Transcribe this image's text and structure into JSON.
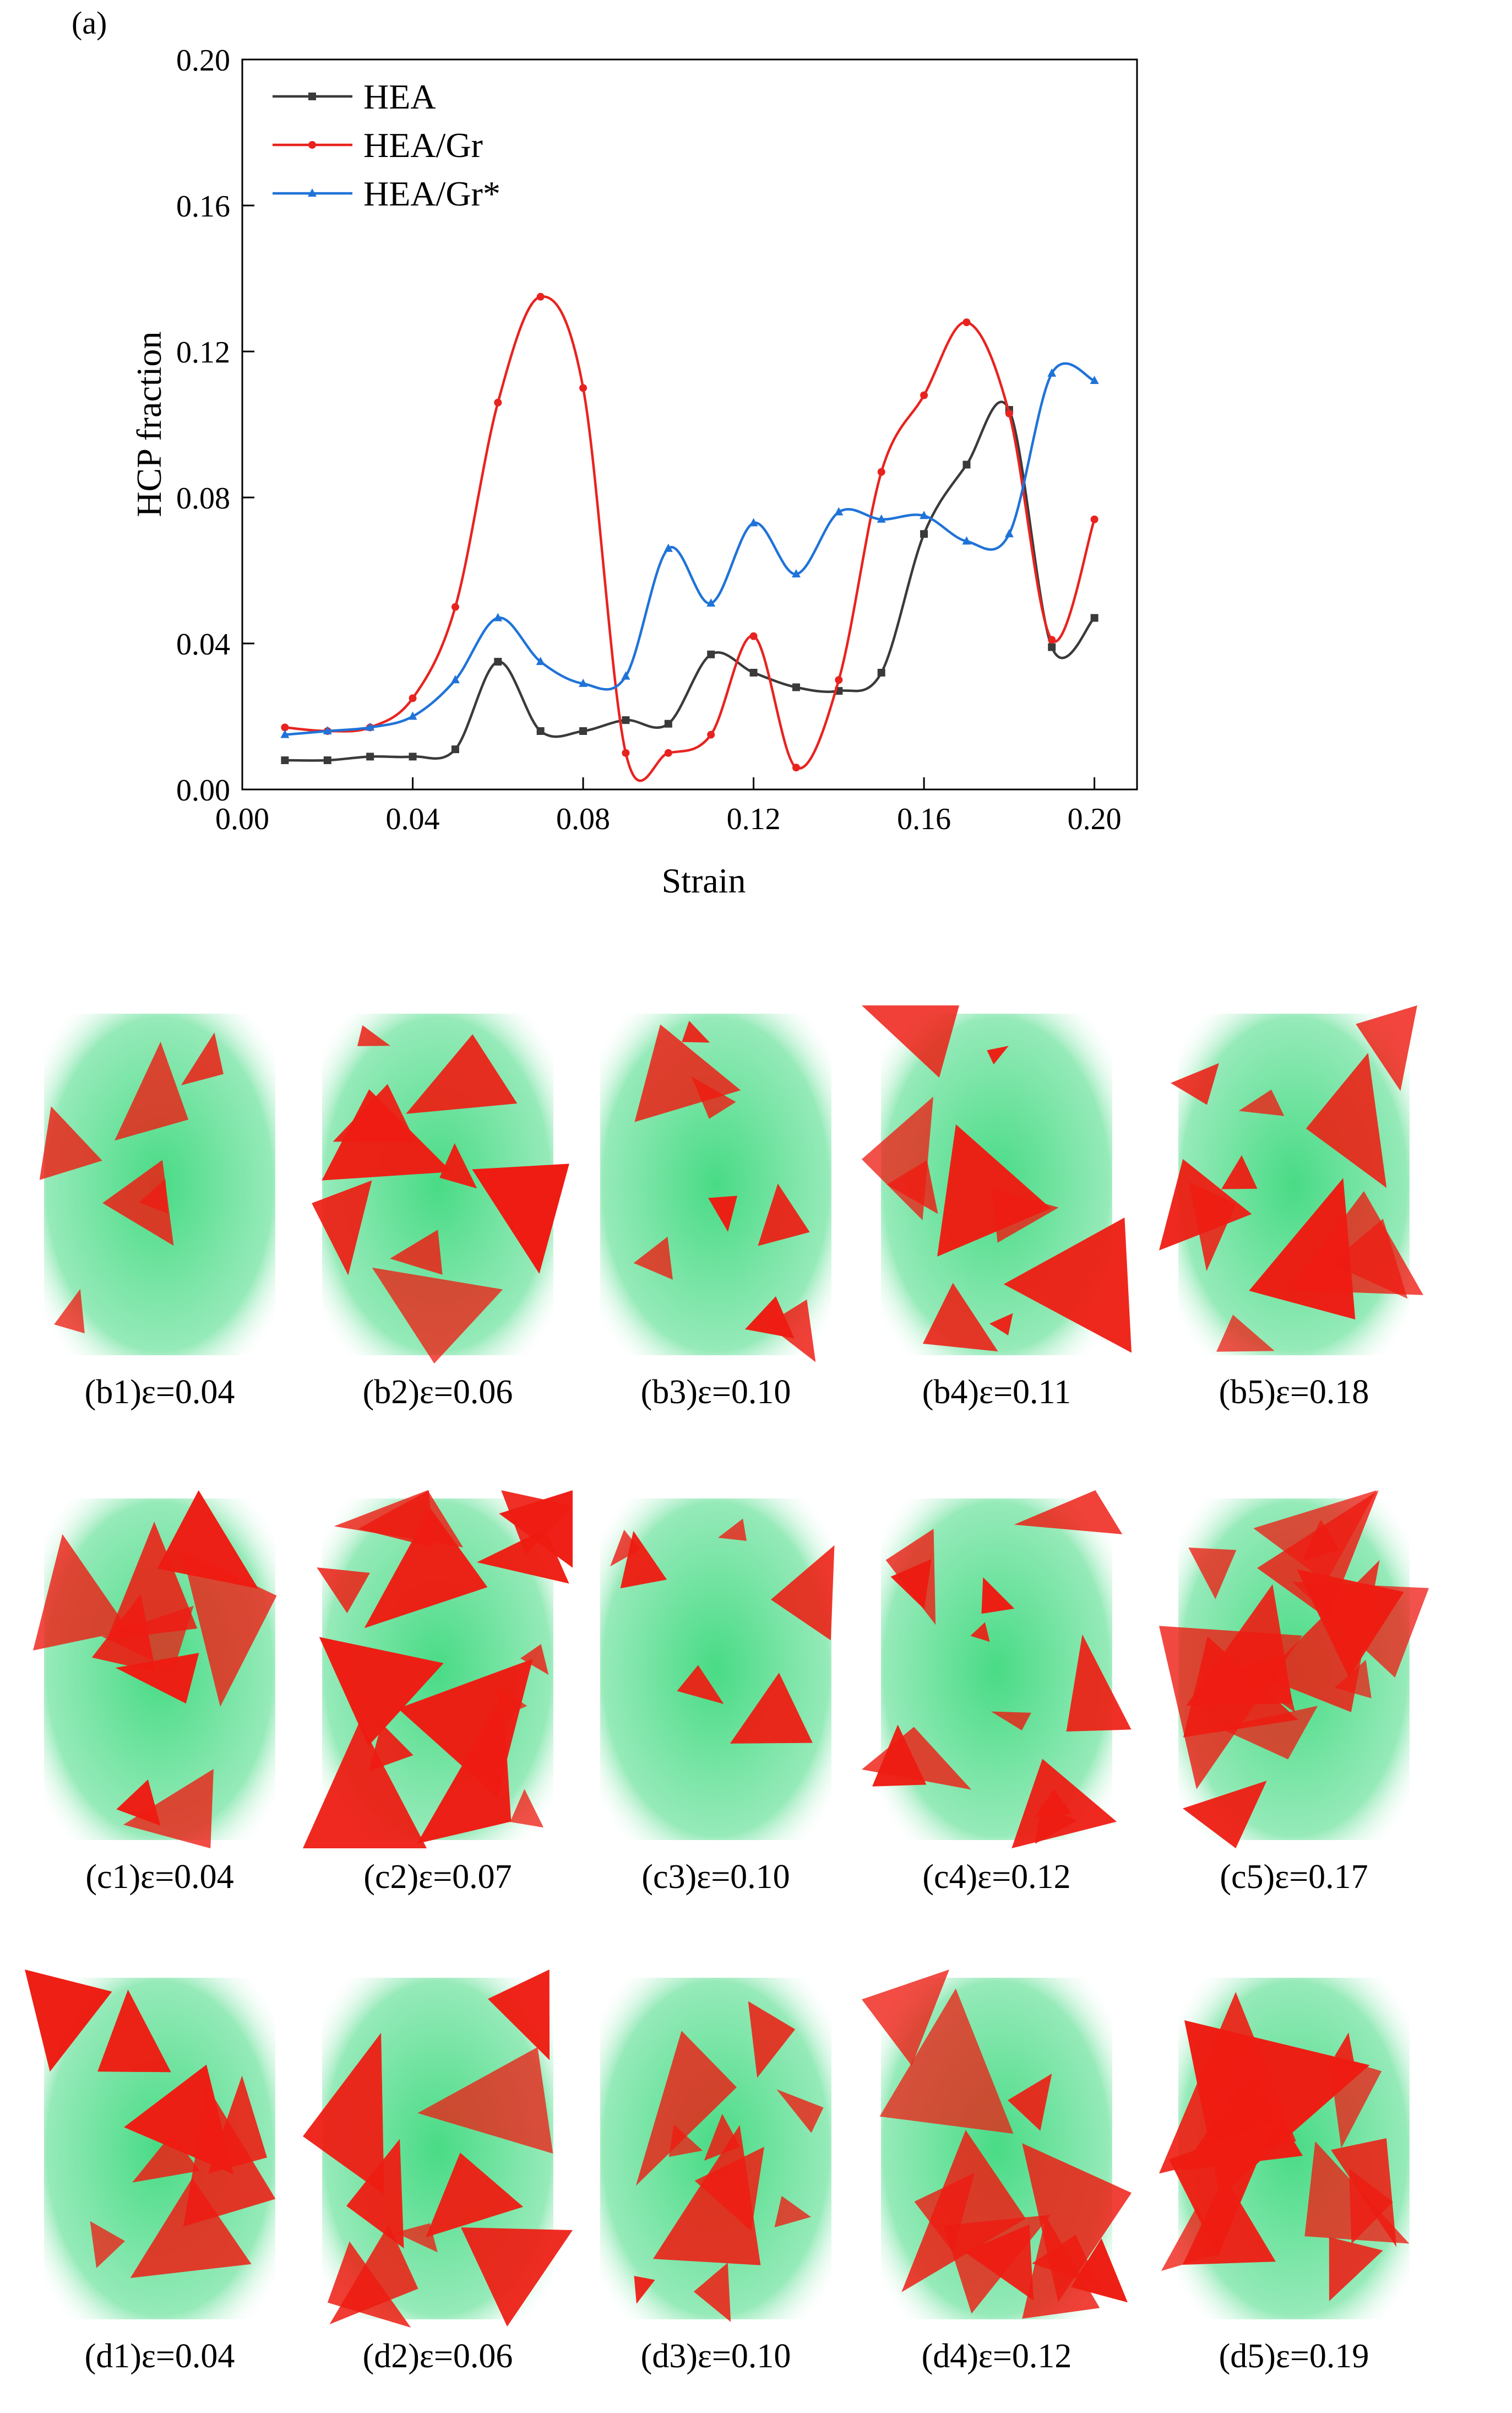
{
  "figure": {
    "panel_label": "(a)"
  },
  "chart_data": {
    "type": "line",
    "title": "",
    "xlabel": "Strain",
    "ylabel": "HCP fraction",
    "xlim": [
      0.0,
      0.21
    ],
    "ylim": [
      0.0,
      0.2
    ],
    "xticks": [
      "0.00",
      "0.04",
      "0.08",
      "0.12",
      "0.16",
      "0.20"
    ],
    "yticks": [
      "0.00",
      "0.04",
      "0.08",
      "0.12",
      "0.16",
      "0.20"
    ],
    "grid": false,
    "legend_position": "top-left",
    "series": [
      {
        "name": "HEA",
        "color": "#3a3a3a",
        "marker": "square",
        "x": [
          0.01,
          0.02,
          0.03,
          0.04,
          0.05,
          0.06,
          0.07,
          0.08,
          0.09,
          0.1,
          0.11,
          0.12,
          0.13,
          0.14,
          0.15,
          0.16,
          0.17,
          0.18,
          0.19,
          0.2
        ],
        "y": [
          0.008,
          0.008,
          0.009,
          0.009,
          0.011,
          0.035,
          0.016,
          0.016,
          0.019,
          0.018,
          0.037,
          0.032,
          0.028,
          0.027,
          0.032,
          0.07,
          0.089,
          0.104,
          0.039,
          0.047
        ]
      },
      {
        "name": "HEA/Gr",
        "color": "#e8231f",
        "marker": "circle",
        "x": [
          0.01,
          0.02,
          0.03,
          0.04,
          0.05,
          0.06,
          0.07,
          0.08,
          0.09,
          0.1,
          0.11,
          0.12,
          0.13,
          0.14,
          0.15,
          0.16,
          0.17,
          0.18,
          0.19,
          0.2
        ],
        "y": [
          0.017,
          0.016,
          0.017,
          0.025,
          0.05,
          0.106,
          0.135,
          0.11,
          0.01,
          0.01,
          0.015,
          0.042,
          0.006,
          0.03,
          0.087,
          0.108,
          0.128,
          0.103,
          0.041,
          0.074
        ]
      },
      {
        "name": "HEA/Gr*",
        "color": "#1f73d8",
        "marker": "triangle",
        "x": [
          0.01,
          0.02,
          0.03,
          0.04,
          0.05,
          0.06,
          0.07,
          0.08,
          0.09,
          0.1,
          0.11,
          0.12,
          0.13,
          0.14,
          0.15,
          0.16,
          0.17,
          0.18,
          0.19,
          0.2
        ],
        "y": [
          0.015,
          0.016,
          0.017,
          0.02,
          0.03,
          0.047,
          0.035,
          0.029,
          0.031,
          0.066,
          0.051,
          0.073,
          0.059,
          0.076,
          0.074,
          0.075,
          0.068,
          0.07,
          0.114,
          0.112
        ]
      }
    ]
  },
  "snapshots": {
    "colors": {
      "matrix": "#3fd97f",
      "hcp": "#ee1c12"
    },
    "rows": [
      {
        "row": "b",
        "items": [
          {
            "label": "(b1)ε=0.04",
            "density": 0.15
          },
          {
            "label": "(b2)ε=0.06",
            "density": 0.45
          },
          {
            "label": "(b3)ε=0.10",
            "density": 0.3
          },
          {
            "label": "(b4)ε=0.11",
            "density": 0.45
          },
          {
            "label": "(b5)ε=0.18",
            "density": 0.6
          }
        ]
      },
      {
        "row": "c",
        "items": [
          {
            "label": "(c1)ε=0.04",
            "density": 0.45
          },
          {
            "label": "(c2)ε=0.07",
            "density": 0.95
          },
          {
            "label": "(c3)ε=0.10",
            "density": 0.15
          },
          {
            "label": "(c4)ε=0.12",
            "density": 0.7
          },
          {
            "label": "(c5)ε=0.17",
            "density": 0.8
          }
        ]
      },
      {
        "row": "d",
        "items": [
          {
            "label": "(d1)ε=0.04",
            "density": 0.35
          },
          {
            "label": "(d2)ε=0.06",
            "density": 0.45
          },
          {
            "label": "(d3)ε=0.10",
            "density": 0.5
          },
          {
            "label": "(d4)ε=0.12",
            "density": 0.55
          },
          {
            "label": "(d5)ε=0.19",
            "density": 0.7
          }
        ]
      }
    ]
  }
}
